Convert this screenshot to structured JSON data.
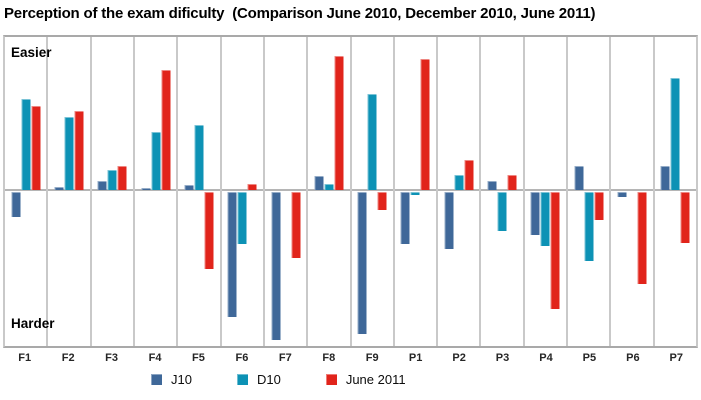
{
  "title": "Perception of the exam dificulty  (Comparison June 2010, December 2010, June 2011)",
  "chart_data": {
    "type": "bar",
    "title": "Perception of the exam dificulty  (Comparison June 2010, December 2010, June 2011)",
    "categories": [
      "F1",
      "F2",
      "F3",
      "F4",
      "F5",
      "F6",
      "F7",
      "F8",
      "F9",
      "P1",
      "P2",
      "P3",
      "P4",
      "P5",
      "P6",
      "P7"
    ],
    "series": [
      {
        "name": "J10",
        "color": "#3f6899",
        "values": [
          -0.16,
          0.02,
          0.06,
          0.01,
          0.03,
          -0.81,
          -0.96,
          0.09,
          -0.92,
          -0.34,
          -0.37,
          0.06,
          -0.28,
          0.16,
          -0.03,
          0.16
        ]
      },
      {
        "name": "D10",
        "color": "#0d92b5",
        "values": [
          0.6,
          0.48,
          0.13,
          0.38,
          0.43,
          -0.34,
          0,
          0.04,
          0.63,
          -0.02,
          0.1,
          -0.25,
          -0.35,
          -0.45,
          0,
          0.74
        ]
      },
      {
        "name": "June 2011",
        "color": "#e1241b",
        "values": [
          0.55,
          0.52,
          0.16,
          0.79,
          -0.5,
          0.04,
          -0.43,
          0.88,
          -0.12,
          0.86,
          0.2,
          0.1,
          -0.76,
          -0.18,
          -0.6,
          -0.33
        ]
      }
    ],
    "ylim": [
      -1,
      1
    ],
    "y_annotations": {
      "top": "Easier",
      "bottom": "Harder"
    },
    "zero_line": true,
    "grid": "vertical column separators only",
    "legend_position": "bottom",
    "xlabel": "",
    "ylabel": ""
  },
  "colors": {
    "background": "#ffffff",
    "plot_border": "#a9a9a9",
    "column_separator": "#c9c9c9",
    "zero_line": "#b5b5b5",
    "series_j10": "#3f6899",
    "series_d10": "#0d92b5",
    "series_june2011": "#e1241b"
  }
}
